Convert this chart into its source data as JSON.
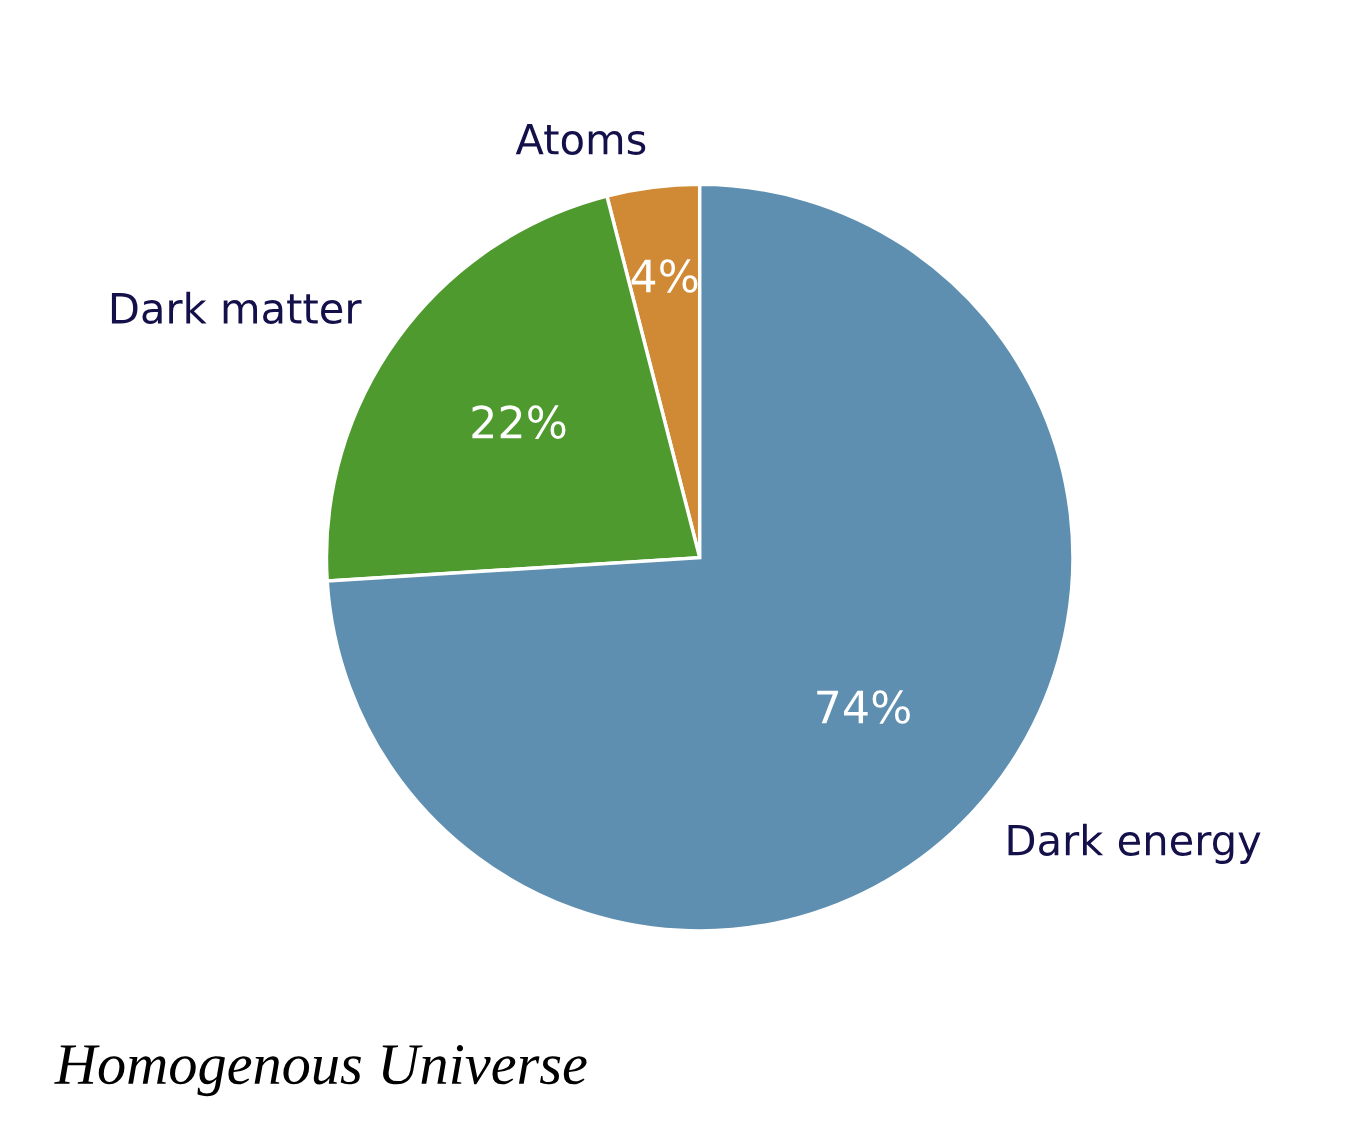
{
  "chart_data": {
    "type": "pie",
    "title": "Homogenous Universe",
    "categories": [
      "Atoms",
      "Dark matter",
      "Dark energy"
    ],
    "values": [
      4,
      22,
      74
    ],
    "colors": [
      "#d08a35",
      "#4f9a2e",
      "#5f8fb0"
    ],
    "value_labels": [
      "4%",
      "22%",
      "74%"
    ]
  }
}
